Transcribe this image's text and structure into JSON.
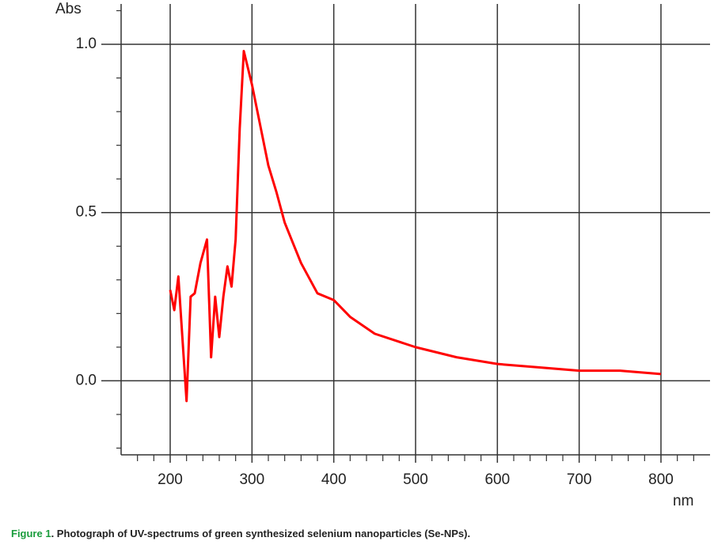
{
  "chart_data": {
    "type": "line",
    "x_label": "nm",
    "y_label": "Abs",
    "caption_label": "Figure 1",
    "caption_text": ". Photograph of UV-spectrums of green synthesized selenium nanoparticles (Se-NPs).",
    "caption_label_color": "#1a9c3c",
    "grid": true,
    "xlim": [
      140,
      860
    ],
    "ylim": [
      -0.22,
      1.12
    ],
    "xticks": [
      200,
      300,
      400,
      500,
      600,
      700,
      800
    ],
    "yticks": [
      {
        "value": 0,
        "label": "0.0"
      },
      0.5,
      {
        "value": 1,
        "label": "1.0"
      }
    ],
    "xminorticks": [
      160,
      180,
      220,
      240,
      260,
      280,
      320,
      340,
      360,
      380,
      420,
      440,
      460,
      480,
      520,
      540,
      560,
      580,
      620,
      640,
      660,
      680,
      720,
      740,
      760,
      780,
      820,
      840
    ],
    "yminorticks": [
      -0.2,
      -0.1,
      0.1,
      0.2,
      0.3,
      0.4,
      0.6,
      0.7,
      0.8,
      0.9,
      1.1
    ],
    "series": [
      {
        "name": "Se-NPs",
        "color": "#ff0000",
        "x": [
          200,
          205,
          210,
          220,
          225,
          230,
          237,
          245,
          250,
          255,
          260,
          265,
          270,
          275,
          280,
          285,
          290,
          300,
          310,
          320,
          330,
          340,
          350,
          360,
          380,
          400,
          420,
          450,
          500,
          550,
          600,
          650,
          700,
          750,
          800
        ],
        "values": [
          0.27,
          0.21,
          0.31,
          -0.06,
          0.25,
          0.26,
          0.35,
          0.42,
          0.07,
          0.25,
          0.13,
          0.25,
          0.34,
          0.28,
          0.42,
          0.75,
          0.98,
          0.88,
          0.76,
          0.64,
          0.56,
          0.47,
          0.41,
          0.35,
          0.26,
          0.24,
          0.19,
          0.14,
          0.1,
          0.07,
          0.05,
          0.04,
          0.03,
          0.03,
          0.02
        ]
      }
    ]
  }
}
